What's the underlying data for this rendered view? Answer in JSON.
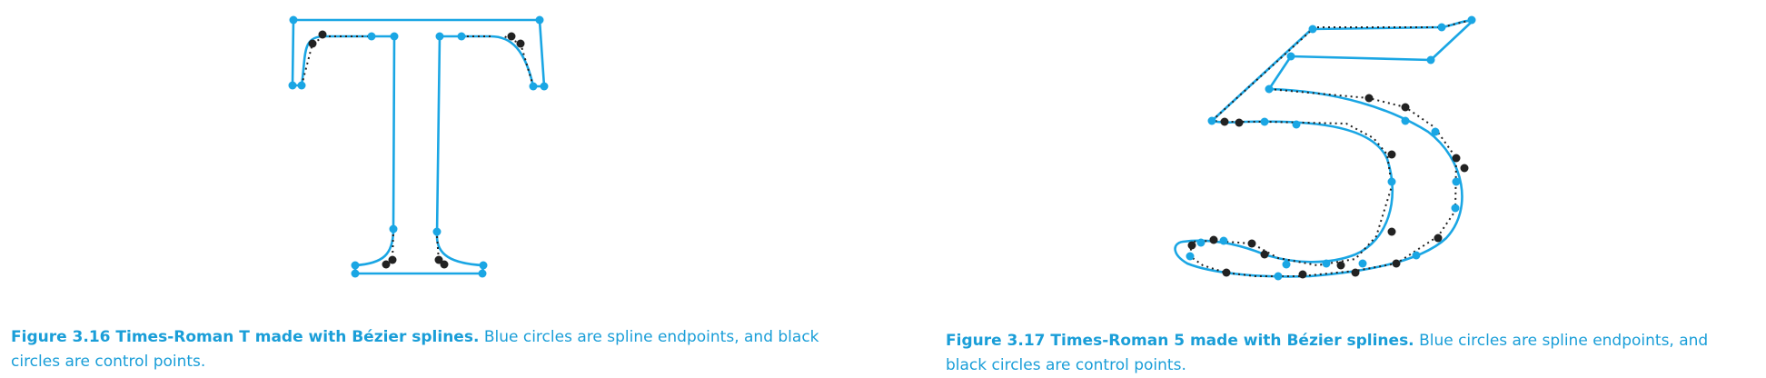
{
  "colors": {
    "spline": "#1aa6e4",
    "endpoint": "#1aa6e4",
    "control": "#222222",
    "caption": "#1a9ed8"
  },
  "figures": [
    {
      "label": "Figure 3.16 Times-Roman T made with Bézier splines.",
      "text": "Blue circles are spline endpoints, and black circles are control points."
    },
    {
      "label": "Figure 3.17 Times-Roman 5 made with Bézier splines.",
      "text": "Blue circles are spline endpoints, and black circles are control points."
    }
  ]
}
